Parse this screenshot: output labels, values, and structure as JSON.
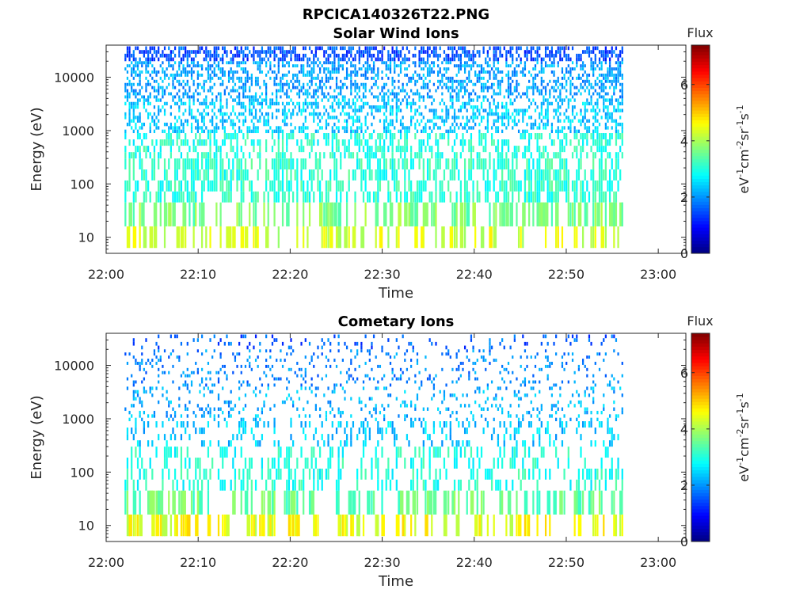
{
  "figure": {
    "title": "RPCICA140326T22.PNG"
  },
  "chart_data": [
    {
      "type": "heatmap",
      "title": "Solar Wind Ions",
      "xlabel": "Time",
      "ylabel": "Energy (eV)",
      "xticks": [
        "22:00",
        "22:10",
        "22:20",
        "22:30",
        "22:40",
        "22:50",
        "23:00"
      ],
      "xlim": [
        "22:00",
        "23:03"
      ],
      "data_time_range": [
        "22:02",
        "22:56"
      ],
      "yscale": "log",
      "yticks": [
        "10",
        "100",
        "1000",
        "10000"
      ],
      "ylim": [
        5,
        40000
      ],
      "colorbar": {
        "label": "Flux",
        "units": "eV-1cm-2sr-1s-1",
        "units_parts": [
          "eV",
          "-1",
          "cm",
          "-2",
          "sr",
          "-1",
          "s",
          "-1"
        ],
        "ticks": [
          "0",
          "2",
          "4",
          "6"
        ],
        "range": [
          0,
          7.4
        ],
        "colormap": "jet"
      },
      "bands": [
        {
          "energy": 10,
          "flux": 4.3,
          "fill": 0.35
        },
        {
          "energy": 30,
          "flux": 3.7,
          "fill": 0.45
        },
        {
          "energy": 120,
          "flux": 3.1,
          "fill": 0.55
        },
        {
          "energy": 600,
          "flux": 3.0,
          "fill": 0.45
        },
        {
          "energy": 1500,
          "flux": 2.4,
          "fill": 0.4
        },
        {
          "energy": 8000,
          "flux": 2.1,
          "fill": 0.45
        },
        {
          "energy": 30000,
          "flux": 1.5,
          "fill": 0.55
        }
      ]
    },
    {
      "type": "heatmap",
      "title": "Cometary Ions",
      "xlabel": "Time",
      "ylabel": "Energy (eV)",
      "xticks": [
        "22:00",
        "22:10",
        "22:20",
        "22:30",
        "22:40",
        "22:50",
        "23:00"
      ],
      "xlim": [
        "22:00",
        "23:03"
      ],
      "data_time_range": [
        "22:02",
        "22:56"
      ],
      "yscale": "log",
      "yticks": [
        "10",
        "100",
        "1000",
        "10000"
      ],
      "ylim": [
        5,
        40000
      ],
      "colorbar": {
        "label": "Flux",
        "units": "eV-1cm-2sr-1s-1",
        "units_parts": [
          "eV",
          "-1",
          "cm",
          "-2",
          "sr",
          "-1",
          "s",
          "-1"
        ],
        "ticks": [
          "0",
          "2",
          "4",
          "6"
        ],
        "range": [
          0,
          7.4
        ],
        "colormap": "jet"
      },
      "bands": [
        {
          "energy": 10,
          "flux": 4.5,
          "fill": 0.4
        },
        {
          "energy": 30,
          "flux": 3.5,
          "fill": 0.35
        },
        {
          "energy": 120,
          "flux": 3.0,
          "fill": 0.3
        },
        {
          "energy": 600,
          "flux": 2.4,
          "fill": 0.22
        },
        {
          "energy": 1500,
          "flux": 2.2,
          "fill": 0.16
        },
        {
          "energy": 8000,
          "flux": 1.9,
          "fill": 0.14
        },
        {
          "energy": 30000,
          "flux": 1.6,
          "fill": 0.12
        }
      ]
    }
  ]
}
